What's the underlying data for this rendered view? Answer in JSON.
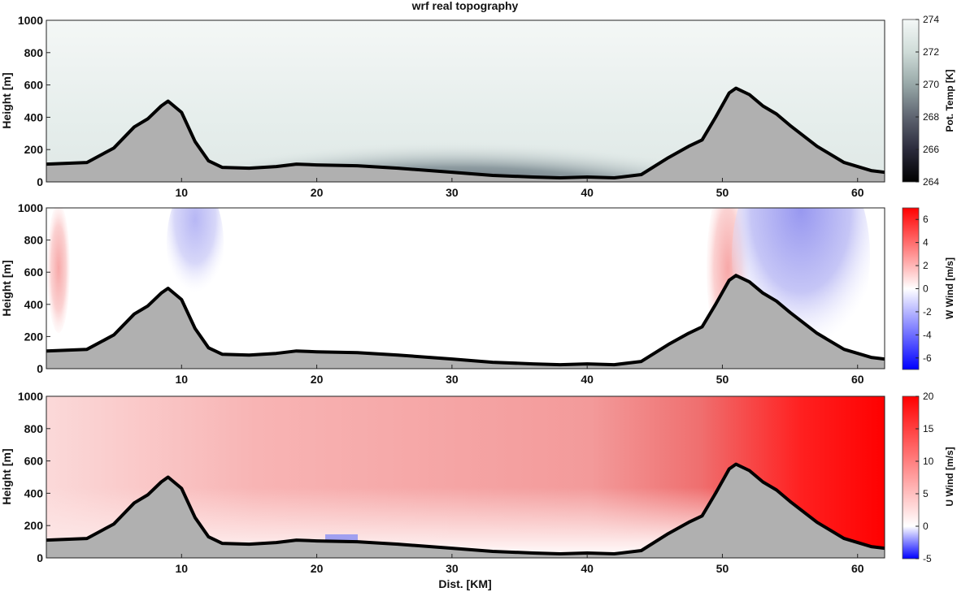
{
  "figure": {
    "title": "wrf real topography",
    "xlabel": "Dist. [KM]"
  },
  "chart_data": [
    {
      "type": "heatmap",
      "field": "potential temperature",
      "ylabel": "Height [m]",
      "colorbar_label": "Pot. Temp [K]",
      "colorbar_ticks": [
        "264",
        "266",
        "268",
        "270",
        "272",
        "274"
      ],
      "clim": [
        264,
        274
      ],
      "xlim": [
        0,
        62
      ],
      "ylim": [
        0,
        1000
      ],
      "x_ticks": [
        "10",
        "20",
        "30",
        "40",
        "50",
        "60"
      ],
      "y_ticks": [
        "0",
        "200",
        "400",
        "600",
        "800",
        "1000"
      ],
      "colormap": [
        "#000000",
        "#2b2b3c",
        "#5e6470",
        "#98a8a8",
        "#cfdcd8",
        "#f4f8f7"
      ]
    },
    {
      "type": "heatmap",
      "field": "vertical wind",
      "ylabel": "Height [m]",
      "colorbar_label": "W Wind [m/s]",
      "colorbar_ticks": [
        "6",
        "4",
        "2",
        "0",
        "-2",
        "-4",
        "-6"
      ],
      "clim": [
        -7,
        7
      ],
      "xlim": [
        0,
        62
      ],
      "ylim": [
        0,
        1000
      ],
      "x_ticks": [
        "10",
        "20",
        "30",
        "40",
        "50",
        "60"
      ],
      "y_ticks": [
        "0",
        "200",
        "400",
        "600",
        "800",
        "1000"
      ],
      "colormap": [
        "#0000ff",
        "#ffffff",
        "#ff0000"
      ]
    },
    {
      "type": "heatmap",
      "field": "horizontal wind",
      "ylabel": "Height [m]",
      "colorbar_label": "U Wind [m/s]",
      "colorbar_ticks": [
        "20",
        "15",
        "10",
        "5",
        "0",
        "-5"
      ],
      "clim": [
        -5,
        20
      ],
      "xlim": [
        0,
        62
      ],
      "ylim": [
        0,
        1000
      ],
      "x_ticks": [
        "10",
        "20",
        "30",
        "40",
        "50",
        "60"
      ],
      "y_ticks": [
        "0",
        "200",
        "400",
        "600",
        "800",
        "1000"
      ],
      "colormap": [
        "#0000ff",
        "#ffffff",
        "#ff0000"
      ]
    }
  ],
  "terrain": {
    "x": [
      0,
      3,
      5,
      6.5,
      7.5,
      8.5,
      9,
      10,
      11,
      12,
      13,
      15,
      17,
      18.5,
      20,
      23,
      26,
      30,
      33,
      36,
      38,
      40,
      42,
      44,
      46,
      47.5,
      48.5,
      49.5,
      50.5,
      51,
      52,
      53,
      54,
      55,
      57,
      59,
      61,
      62
    ],
    "height": [
      110,
      120,
      210,
      340,
      390,
      470,
      500,
      430,
      250,
      130,
      90,
      85,
      95,
      110,
      105,
      100,
      85,
      60,
      40,
      30,
      25,
      30,
      25,
      45,
      150,
      220,
      260,
      400,
      550,
      580,
      540,
      470,
      420,
      350,
      220,
      120,
      70,
      60
    ],
    "fill": "#b0b0b0"
  }
}
